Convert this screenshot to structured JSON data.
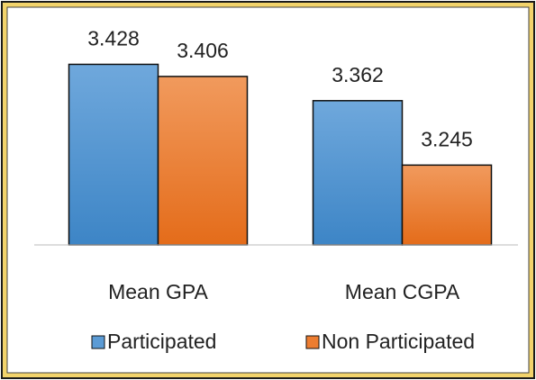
{
  "chart_data": {
    "type": "bar",
    "categories": [
      "Mean GPA",
      "Mean CGPA"
    ],
    "series": [
      {
        "name": "Participated",
        "color": "#5b9bd5",
        "values": [
          3.428,
          3.362
        ]
      },
      {
        "name": "Non Participated",
        "color": "#ed7d31",
        "values": [
          3.406,
          3.245
        ]
      }
    ],
    "ylim": [
      3.1,
      3.45
    ]
  }
}
